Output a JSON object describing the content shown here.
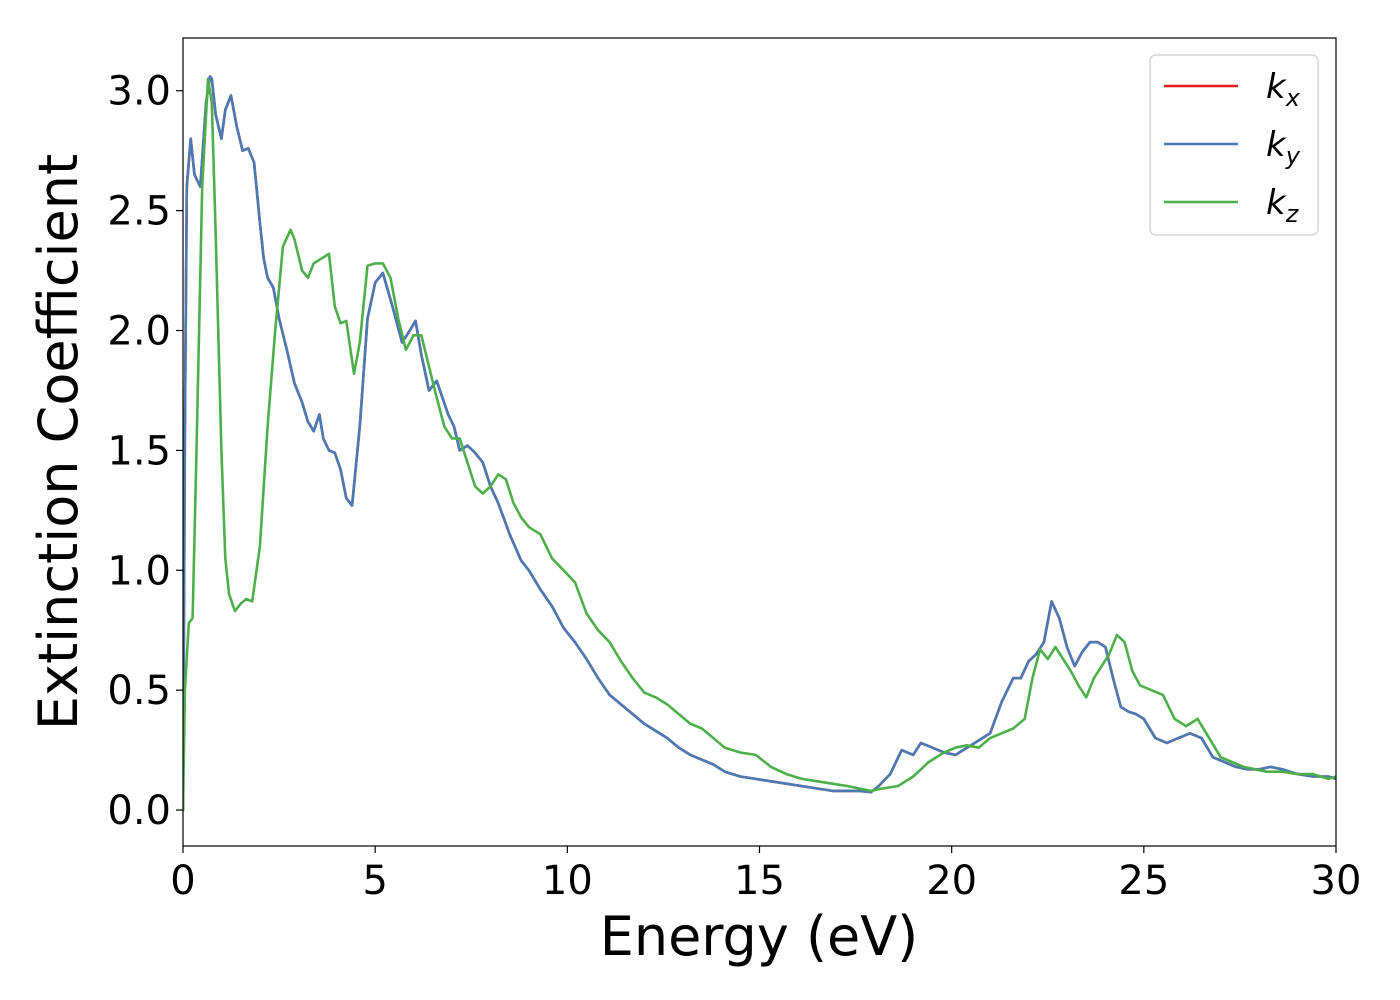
{
  "chart_data": {
    "type": "line",
    "title": "",
    "xlabel": "Energy (eV)",
    "ylabel": "Extinction Coefficient",
    "xlim": [
      0,
      30
    ],
    "ylim": [
      -0.15,
      3.22
    ],
    "xticks": [
      0,
      5,
      10,
      15,
      20,
      25,
      30
    ],
    "yticks": [
      0.0,
      0.5,
      1.0,
      1.5,
      2.0,
      2.5,
      3.0
    ],
    "xtick_labels": [
      "0",
      "5",
      "10",
      "15",
      "20",
      "25",
      "30"
    ],
    "ytick_labels": [
      "0.0",
      "0.5",
      "1.0",
      "1.5",
      "2.0",
      "2.5",
      "3.0"
    ],
    "grid": false,
    "legend_position": "top-right",
    "series": [
      {
        "name": "k_x",
        "label_base": "k",
        "label_sub": "x",
        "color": "#e41a1c",
        "x": [
          0,
          0.05,
          0.1,
          0.2,
          0.3,
          0.45,
          0.6,
          0.7,
          0.75,
          0.85,
          1.0,
          1.1,
          1.25,
          1.4,
          1.55,
          1.7,
          1.85,
          2.0,
          2.1,
          2.2,
          2.35,
          2.5,
          2.7,
          2.9,
          3.1,
          3.25,
          3.4,
          3.55,
          3.65,
          3.8,
          3.95,
          4.1,
          4.25,
          4.4,
          4.6,
          4.8,
          5.0,
          5.2,
          5.45,
          5.7,
          5.9,
          6.05,
          6.2,
          6.4,
          6.6,
          6.75,
          6.9,
          7.05,
          7.2,
          7.4,
          7.6,
          7.8,
          8.0,
          8.2,
          8.5,
          8.8,
          9.0,
          9.3,
          9.6,
          9.9,
          10.2,
          10.5,
          10.8,
          11.1,
          11.4,
          11.7,
          12.0,
          12.3,
          12.6,
          12.9,
          13.2,
          13.5,
          13.8,
          14.1,
          14.5,
          14.9,
          15.3,
          15.7,
          16.1,
          16.5,
          16.9,
          17.3,
          17.6,
          17.9,
          18.1,
          18.4,
          18.7,
          19.0,
          19.2,
          19.5,
          19.8,
          20.1,
          20.3,
          20.5,
          20.8,
          21.0,
          21.3,
          21.6,
          21.8,
          22.0,
          22.2,
          22.4,
          22.6,
          22.8,
          23.0,
          23.2,
          23.4,
          23.6,
          23.8,
          24.0,
          24.2,
          24.4,
          24.6,
          24.8,
          25.0,
          25.3,
          25.6,
          25.9,
          26.2,
          26.5,
          26.8,
          27.1,
          27.4,
          27.7,
          28.0,
          28.3,
          28.6,
          29.0,
          29.4,
          29.8,
          30.0
        ],
        "y": [
          0.0,
          1.6,
          2.6,
          2.8,
          2.65,
          2.6,
          2.95,
          3.06,
          3.05,
          2.9,
          2.8,
          2.92,
          2.98,
          2.85,
          2.75,
          2.76,
          2.7,
          2.45,
          2.3,
          2.22,
          2.18,
          2.05,
          1.92,
          1.78,
          1.7,
          1.62,
          1.58,
          1.65,
          1.55,
          1.5,
          1.49,
          1.42,
          1.3,
          1.27,
          1.6,
          2.05,
          2.2,
          2.24,
          2.1,
          1.95,
          2.0,
          2.04,
          1.9,
          1.75,
          1.79,
          1.72,
          1.65,
          1.6,
          1.5,
          1.52,
          1.49,
          1.45,
          1.35,
          1.28,
          1.15,
          1.04,
          1.0,
          0.92,
          0.85,
          0.76,
          0.7,
          0.63,
          0.55,
          0.48,
          0.44,
          0.4,
          0.36,
          0.33,
          0.3,
          0.26,
          0.23,
          0.21,
          0.19,
          0.16,
          0.14,
          0.13,
          0.12,
          0.11,
          0.1,
          0.09,
          0.08,
          0.08,
          0.08,
          0.075,
          0.1,
          0.15,
          0.25,
          0.23,
          0.28,
          0.26,
          0.24,
          0.23,
          0.25,
          0.27,
          0.3,
          0.32,
          0.45,
          0.55,
          0.55,
          0.62,
          0.65,
          0.7,
          0.87,
          0.8,
          0.68,
          0.6,
          0.66,
          0.7,
          0.7,
          0.68,
          0.55,
          0.43,
          0.41,
          0.4,
          0.38,
          0.3,
          0.28,
          0.3,
          0.32,
          0.3,
          0.22,
          0.2,
          0.18,
          0.17,
          0.17,
          0.18,
          0.17,
          0.15,
          0.14,
          0.14,
          0.13
        ]
      },
      {
        "name": "k_y",
        "label_base": "k",
        "label_sub": "y",
        "color": "#4a7ab4",
        "x": [
          0,
          0.05,
          0.1,
          0.2,
          0.3,
          0.45,
          0.6,
          0.7,
          0.75,
          0.85,
          1.0,
          1.1,
          1.25,
          1.4,
          1.55,
          1.7,
          1.85,
          2.0,
          2.1,
          2.2,
          2.35,
          2.5,
          2.7,
          2.9,
          3.1,
          3.25,
          3.4,
          3.55,
          3.65,
          3.8,
          3.95,
          4.1,
          4.25,
          4.4,
          4.6,
          4.8,
          5.0,
          5.2,
          5.45,
          5.7,
          5.9,
          6.05,
          6.2,
          6.4,
          6.6,
          6.75,
          6.9,
          7.05,
          7.2,
          7.4,
          7.6,
          7.8,
          8.0,
          8.2,
          8.5,
          8.8,
          9.0,
          9.3,
          9.6,
          9.9,
          10.2,
          10.5,
          10.8,
          11.1,
          11.4,
          11.7,
          12.0,
          12.3,
          12.6,
          12.9,
          13.2,
          13.5,
          13.8,
          14.1,
          14.5,
          14.9,
          15.3,
          15.7,
          16.1,
          16.5,
          16.9,
          17.3,
          17.6,
          17.9,
          18.1,
          18.4,
          18.7,
          19.0,
          19.2,
          19.5,
          19.8,
          20.1,
          20.3,
          20.5,
          20.8,
          21.0,
          21.3,
          21.6,
          21.8,
          22.0,
          22.2,
          22.4,
          22.6,
          22.8,
          23.0,
          23.2,
          23.4,
          23.6,
          23.8,
          24.0,
          24.2,
          24.4,
          24.6,
          24.8,
          25.0,
          25.3,
          25.6,
          25.9,
          26.2,
          26.5,
          26.8,
          27.1,
          27.4,
          27.7,
          28.0,
          28.3,
          28.6,
          29.0,
          29.4,
          29.8,
          30.0
        ],
        "y": [
          0.0,
          1.6,
          2.6,
          2.8,
          2.65,
          2.6,
          2.95,
          3.06,
          3.05,
          2.9,
          2.8,
          2.92,
          2.98,
          2.85,
          2.75,
          2.76,
          2.7,
          2.45,
          2.3,
          2.22,
          2.18,
          2.05,
          1.92,
          1.78,
          1.7,
          1.62,
          1.58,
          1.65,
          1.55,
          1.5,
          1.49,
          1.42,
          1.3,
          1.27,
          1.6,
          2.05,
          2.2,
          2.24,
          2.1,
          1.95,
          2.0,
          2.04,
          1.9,
          1.75,
          1.79,
          1.72,
          1.65,
          1.6,
          1.5,
          1.52,
          1.49,
          1.45,
          1.35,
          1.28,
          1.15,
          1.04,
          1.0,
          0.92,
          0.85,
          0.76,
          0.7,
          0.63,
          0.55,
          0.48,
          0.44,
          0.4,
          0.36,
          0.33,
          0.3,
          0.26,
          0.23,
          0.21,
          0.19,
          0.16,
          0.14,
          0.13,
          0.12,
          0.11,
          0.1,
          0.09,
          0.08,
          0.08,
          0.08,
          0.075,
          0.1,
          0.15,
          0.25,
          0.23,
          0.28,
          0.26,
          0.24,
          0.23,
          0.25,
          0.27,
          0.3,
          0.32,
          0.45,
          0.55,
          0.55,
          0.62,
          0.65,
          0.7,
          0.87,
          0.8,
          0.68,
          0.6,
          0.66,
          0.7,
          0.7,
          0.68,
          0.55,
          0.43,
          0.41,
          0.4,
          0.38,
          0.3,
          0.28,
          0.3,
          0.32,
          0.3,
          0.22,
          0.2,
          0.18,
          0.17,
          0.17,
          0.18,
          0.17,
          0.15,
          0.14,
          0.14,
          0.13
        ]
      },
      {
        "name": "k_z",
        "label_base": "k",
        "label_sub": "z",
        "color": "#4daf4a",
        "x": [
          0,
          0.05,
          0.15,
          0.25,
          0.35,
          0.5,
          0.65,
          0.75,
          0.85,
          1.0,
          1.1,
          1.2,
          1.35,
          1.5,
          1.65,
          1.8,
          2.0,
          2.2,
          2.4,
          2.6,
          2.8,
          2.9,
          3.1,
          3.25,
          3.4,
          3.6,
          3.8,
          3.95,
          4.1,
          4.25,
          4.45,
          4.6,
          4.8,
          5.0,
          5.2,
          5.4,
          5.6,
          5.8,
          6.0,
          6.2,
          6.4,
          6.6,
          6.8,
          7.0,
          7.2,
          7.4,
          7.6,
          7.8,
          8.0,
          8.2,
          8.4,
          8.6,
          8.8,
          9.0,
          9.3,
          9.6,
          9.9,
          10.2,
          10.5,
          10.8,
          11.1,
          11.4,
          11.7,
          12.0,
          12.3,
          12.6,
          12.9,
          13.2,
          13.5,
          13.8,
          14.1,
          14.5,
          14.9,
          15.3,
          15.7,
          16.1,
          16.5,
          16.9,
          17.3,
          17.6,
          17.9,
          18.2,
          18.6,
          19.0,
          19.4,
          19.8,
          20.1,
          20.4,
          20.7,
          21.0,
          21.3,
          21.6,
          21.9,
          22.1,
          22.3,
          22.5,
          22.7,
          22.9,
          23.1,
          23.3,
          23.5,
          23.7,
          23.9,
          24.1,
          24.3,
          24.5,
          24.7,
          24.9,
          25.2,
          25.5,
          25.8,
          26.1,
          26.4,
          26.7,
          27.0,
          27.3,
          27.6,
          27.9,
          28.2,
          28.6,
          29.0,
          29.4,
          29.8,
          30.0
        ],
        "y": [
          0.0,
          0.5,
          0.78,
          0.8,
          1.5,
          2.6,
          3.05,
          2.95,
          2.4,
          1.5,
          1.05,
          0.9,
          0.83,
          0.86,
          0.88,
          0.87,
          1.1,
          1.6,
          2.0,
          2.35,
          2.42,
          2.38,
          2.25,
          2.22,
          2.28,
          2.3,
          2.32,
          2.1,
          2.03,
          2.04,
          1.82,
          1.95,
          2.27,
          2.28,
          2.28,
          2.22,
          2.05,
          1.92,
          1.98,
          1.98,
          1.85,
          1.72,
          1.6,
          1.55,
          1.55,
          1.45,
          1.35,
          1.32,
          1.35,
          1.4,
          1.38,
          1.28,
          1.22,
          1.18,
          1.15,
          1.05,
          1.0,
          0.95,
          0.82,
          0.75,
          0.7,
          0.62,
          0.55,
          0.49,
          0.47,
          0.44,
          0.4,
          0.36,
          0.34,
          0.3,
          0.26,
          0.24,
          0.23,
          0.18,
          0.15,
          0.13,
          0.12,
          0.11,
          0.1,
          0.09,
          0.08,
          0.09,
          0.1,
          0.14,
          0.2,
          0.24,
          0.26,
          0.27,
          0.26,
          0.3,
          0.32,
          0.34,
          0.38,
          0.55,
          0.67,
          0.63,
          0.68,
          0.63,
          0.58,
          0.52,
          0.47,
          0.55,
          0.6,
          0.65,
          0.73,
          0.7,
          0.58,
          0.52,
          0.5,
          0.48,
          0.38,
          0.35,
          0.38,
          0.3,
          0.22,
          0.2,
          0.18,
          0.17,
          0.16,
          0.16,
          0.15,
          0.15,
          0.13,
          0.14
        ]
      }
    ]
  }
}
